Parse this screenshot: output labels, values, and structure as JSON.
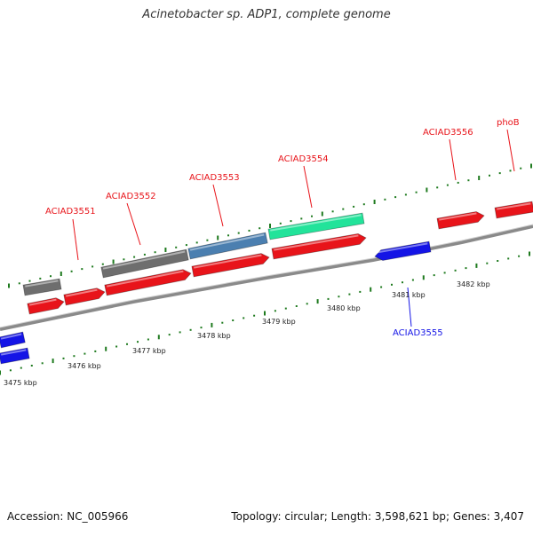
{
  "title": "Acinetobacter sp. ADP1, complete genome",
  "footer": {
    "accession": "Accession: NC_005966",
    "summary": "Topology: circular; Length: 3,598,621 bp; Genes: 3,407"
  },
  "colors": {
    "forward_gene": "#e8141a",
    "reverse_gene": "#1414e6",
    "gray_feature": "#6e6e6e",
    "steel_feature": "#4b7fb0",
    "mint_feature": "#22e39a",
    "tick": "#1e7a1e",
    "backbone": "#8a8a8a",
    "label_red": "#e8141a",
    "label_blue": "#1414e6"
  },
  "scale_labels": [
    "3475 kbp",
    "3476 kbp",
    "3477 kbp",
    "3478 kbp",
    "3479 kbp",
    "3480 kbp",
    "3481 kbp",
    "3482 kbp"
  ],
  "gene_labels": [
    {
      "text": "ACIAD3551",
      "strand": "forward"
    },
    {
      "text": "ACIAD3552",
      "strand": "forward"
    },
    {
      "text": "ACIAD3553",
      "strand": "forward"
    },
    {
      "text": "ACIAD3554",
      "strand": "forward"
    },
    {
      "text": "ACIAD3556",
      "strand": "forward"
    },
    {
      "text": "phoB",
      "strand": "forward"
    },
    {
      "text": "ACIAD3555",
      "strand": "reverse"
    }
  ]
}
